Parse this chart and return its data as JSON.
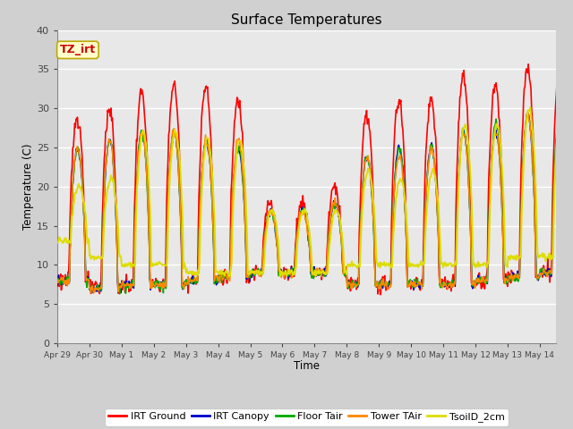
{
  "title": "Surface Temperatures",
  "xlabel": "Time",
  "ylabel": "Temperature (C)",
  "annotation_text": "TZ_irt",
  "annotation_color": "#cc0000",
  "annotation_bg": "#ffffcc",
  "annotation_border": "#bbaa00",
  "series_names": [
    "IRT Ground",
    "IRT Canopy",
    "Floor Tair",
    "Tower TAir",
    "TsoilD_2cm"
  ],
  "series_colors": [
    "#ff0000",
    "#0000cc",
    "#00aa00",
    "#ff8800",
    "#dddd00"
  ],
  "ylim": [
    0,
    40
  ],
  "yticks": [
    0,
    5,
    10,
    15,
    20,
    25,
    30,
    35,
    40
  ],
  "fig_bg_color": "#d0d0d0",
  "plot_bg_color": "#e8e8e8",
  "grid_color": "#ffffff",
  "x_tick_labels": [
    "Apr 29",
    "Apr 30",
    "May 1",
    "May 2",
    "May 3",
    "May 4",
    "May 5",
    "May 6",
    "May 7",
    "May 8",
    "May 9",
    "May 10",
    "May 11",
    "May 12",
    "May 13",
    "May 14"
  ]
}
